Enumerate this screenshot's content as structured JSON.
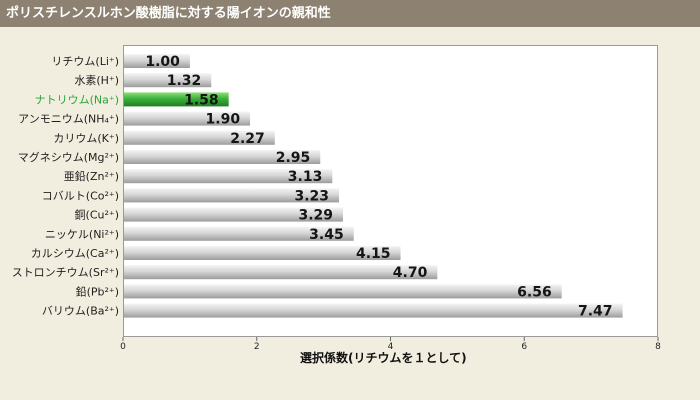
{
  "title": "ポリスチレンスルホン酸樹脂に対する陽イオンの親和性",
  "chart_data": {
    "type": "bar",
    "orientation": "horizontal",
    "title": "ポリスチレンスルホン酸樹脂に対する陽イオンの親和性",
    "xlabel": "選択係数(リチウムを１として)",
    "ylabel": "",
    "xlim": [
      0,
      8
    ],
    "xticks": [
      "0",
      "2",
      "4",
      "6",
      "8"
    ],
    "grid": false,
    "categories": [
      "リチウム(Li⁺)",
      "水素(H⁺)",
      "ナトリウム(Na⁺)",
      "アンモニウム(NH₄⁺)",
      "カリウム(K⁺)",
      "マグネシウム(Mg²⁺)",
      "亜鉛(Zn²⁺)",
      "コバルト(Co²⁺)",
      "銅(Cu²⁺)",
      "ニッケル(Ni²⁺)",
      "カルシウム(Ca²⁺)",
      "ストロンチウム(Sr²⁺)",
      "鉛(Pb²⁺)",
      "バリウム(Ba²⁺)"
    ],
    "values": [
      1.0,
      1.32,
      1.58,
      1.9,
      2.27,
      2.95,
      3.13,
      3.23,
      3.29,
      3.45,
      4.15,
      4.7,
      6.56,
      7.47
    ],
    "value_labels": [
      "1.00",
      "1.32",
      "1.58",
      "1.90",
      "2.27",
      "2.95",
      "3.13",
      "3.23",
      "3.29",
      "3.45",
      "4.15",
      "4.70",
      "6.56",
      "7.47"
    ],
    "highlight_index": 2,
    "colors": {
      "bar": "#c6c6c6",
      "highlight_bar": "#3bb03a",
      "highlight_label": "#2aa53a",
      "title_bar": "#8d8271",
      "background": "#f2eedf"
    }
  }
}
